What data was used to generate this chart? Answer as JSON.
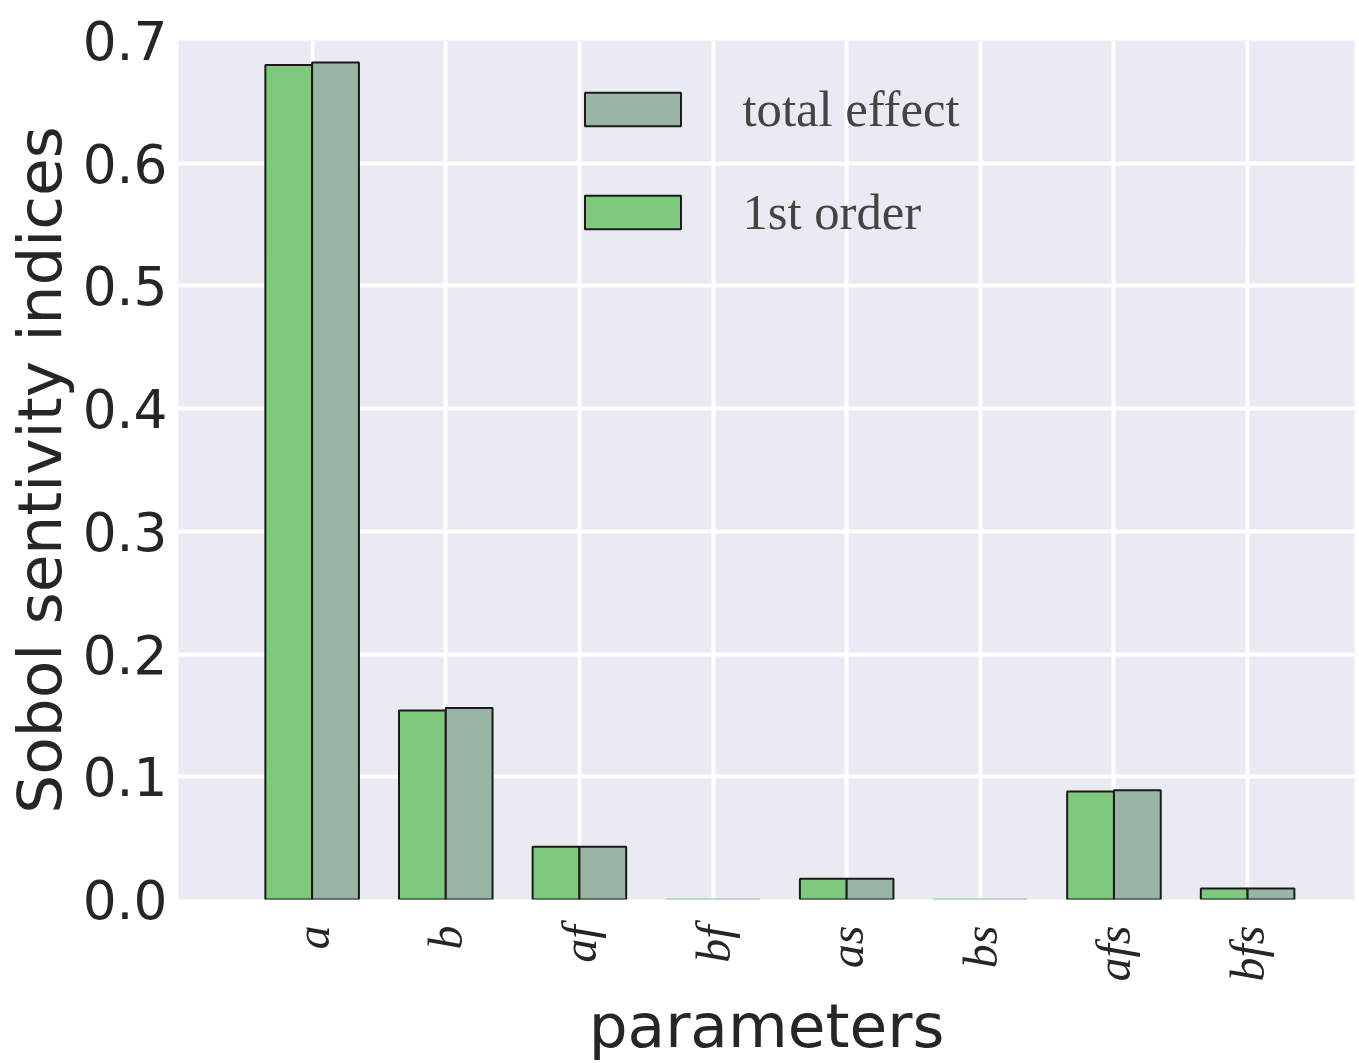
{
  "chart_data": {
    "type": "bar",
    "xlabel": "parameters",
    "ylabel": "Sobol sentivity indices",
    "categories": [
      "a",
      "b",
      "af",
      "bf",
      "as",
      "bs",
      "afs",
      "bfs"
    ],
    "series": [
      {
        "name": "1st order",
        "color": "#7fc97f",
        "values": [
          0.68,
          0.154,
          0.043,
          0.0,
          0.017,
          0.0,
          0.088,
          0.009
        ]
      },
      {
        "name": "total effect",
        "color": "#9ab5a5",
        "values": [
          0.682,
          0.156,
          0.043,
          0.0,
          0.017,
          0.0,
          0.089,
          0.009
        ]
      }
    ],
    "ylim": [
      0,
      0.7
    ],
    "yticks": [
      {
        "value": 0,
        "label": "0.0"
      },
      0.1,
      0.2,
      0.3,
      0.4,
      0.5,
      0.6,
      0.7
    ],
    "grid": true,
    "legend": "top"
  }
}
